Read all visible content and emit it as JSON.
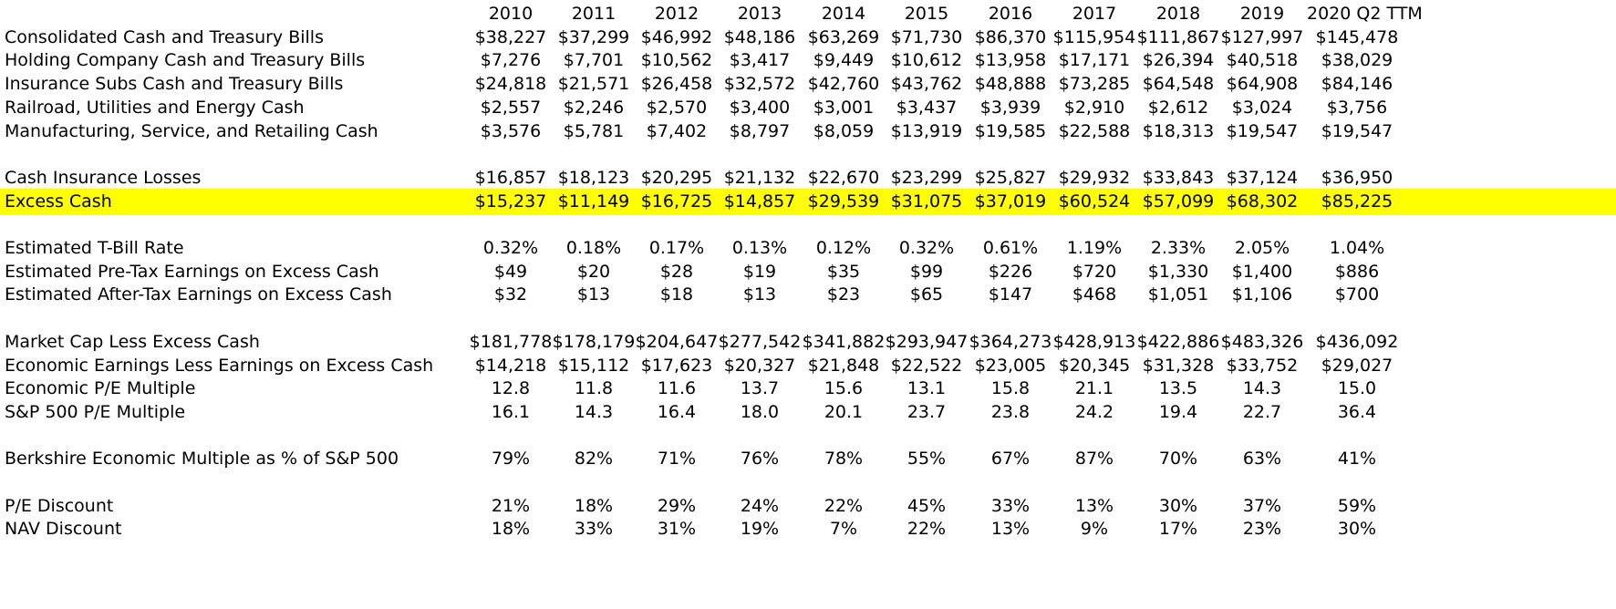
{
  "table": {
    "headers": [
      "2010",
      "2011",
      "2012",
      "2013",
      "2014",
      "2015",
      "2016",
      "2017",
      "2018",
      "2019",
      "2020 Q2 TTM"
    ],
    "rows": [
      {
        "label": "",
        "values": [
          "2010",
          "2011",
          "2012",
          "2013",
          "2014",
          "2015",
          "2016",
          "2017",
          "2018",
          "2019",
          "2020 Q2 TTM"
        ],
        "header": true
      },
      {
        "label": "Consolidated Cash and Treasury Bills",
        "values": [
          "$38,227",
          "$37,299",
          "$46,992",
          "$48,186",
          "$63,269",
          "$71,730",
          "$86,370",
          "$115,954",
          "$111,867",
          "$127,997",
          "$145,478"
        ]
      },
      {
        "label": "Holding Company Cash and Treasury Bills",
        "values": [
          "$7,276",
          "$7,701",
          "$10,562",
          "$3,417",
          "$9,449",
          "$10,612",
          "$13,958",
          "$17,171",
          "$26,394",
          "$40,518",
          "$38,029"
        ]
      },
      {
        "label": "Insurance Subs Cash and Treasury Bills",
        "values": [
          "$24,818",
          "$21,571",
          "$26,458",
          "$32,572",
          "$42,760",
          "$43,762",
          "$48,888",
          "$73,285",
          "$64,548",
          "$64,908",
          "$84,146"
        ]
      },
      {
        "label": "Railroad, Utilities and Energy Cash",
        "values": [
          "$2,557",
          "$2,246",
          "$2,570",
          "$3,400",
          "$3,001",
          "$3,437",
          "$3,939",
          "$2,910",
          "$2,612",
          "$3,024",
          "$3,756"
        ]
      },
      {
        "label": "Manufacturing, Service, and Retailing Cash",
        "values": [
          "$3,576",
          "$5,781",
          "$7,402",
          "$8,797",
          "$8,059",
          "$13,919",
          "$19,585",
          "$22,588",
          "$18,313",
          "$19,547",
          "$19,547"
        ]
      },
      {
        "label": "",
        "values": [],
        "blank": true
      },
      {
        "label": "Cash Insurance Losses",
        "values": [
          "$16,857",
          "$18,123",
          "$20,295",
          "$21,132",
          "$22,670",
          "$23,299",
          "$25,827",
          "$29,932",
          "$33,843",
          "$37,124",
          "$36,950"
        ]
      },
      {
        "label": "Excess Cash",
        "values": [
          "$15,237",
          "$11,149",
          "$16,725",
          "$14,857",
          "$29,539",
          "$31,075",
          "$37,019",
          "$60,524",
          "$57,099",
          "$68,302",
          "$85,225"
        ],
        "highlight": true
      },
      {
        "label": "",
        "values": [],
        "blank": true
      },
      {
        "label": "Estimated T-Bill Rate",
        "values": [
          "0.32%",
          "0.18%",
          "0.17%",
          "0.13%",
          "0.12%",
          "0.32%",
          "0.61%",
          "1.19%",
          "2.33%",
          "2.05%",
          "1.04%"
        ]
      },
      {
        "label": "Estimated Pre-Tax Earnings on Excess Cash",
        "values": [
          "$49",
          "$20",
          "$28",
          "$19",
          "$35",
          "$99",
          "$226",
          "$720",
          "$1,330",
          "$1,400",
          "$886"
        ]
      },
      {
        "label": "Estimated After-Tax Earnings on Excess Cash",
        "values": [
          "$32",
          "$13",
          "$18",
          "$13",
          "$23",
          "$65",
          "$147",
          "$468",
          "$1,051",
          "$1,106",
          "$700"
        ]
      },
      {
        "label": "",
        "values": [],
        "blank": true
      },
      {
        "label": "Market Cap Less Excess Cash",
        "values": [
          "$181,778",
          "$178,179",
          "$204,647",
          "$277,542",
          "$341,882",
          "$293,947",
          "$364,273",
          "$428,913",
          "$422,886",
          "$483,326",
          "$436,092"
        ]
      },
      {
        "label": "Economic Earnings Less Earnings on Excess Cash",
        "values": [
          "$14,218",
          "$15,112",
          "$17,623",
          "$20,327",
          "$21,848",
          "$22,522",
          "$23,005",
          "$20,345",
          "$31,328",
          "$33,752",
          "$29,027"
        ]
      },
      {
        "label": "Economic P/E Multiple",
        "values": [
          "12.8",
          "11.8",
          "11.6",
          "13.7",
          "15.6",
          "13.1",
          "15.8",
          "21.1",
          "13.5",
          "14.3",
          "15.0"
        ]
      },
      {
        "label": "S&P 500 P/E Multiple",
        "values": [
          "16.1",
          "14.3",
          "16.4",
          "18.0",
          "20.1",
          "23.7",
          "23.8",
          "24.2",
          "19.4",
          "22.7",
          "36.4"
        ]
      },
      {
        "label": "",
        "values": [],
        "blank": true
      },
      {
        "label": "Berkshire Economic Multiple as % of S&P 500",
        "values": [
          "79%",
          "82%",
          "71%",
          "76%",
          "78%",
          "55%",
          "67%",
          "87%",
          "70%",
          "63%",
          "41%"
        ]
      },
      {
        "label": "",
        "values": [],
        "blank": true
      },
      {
        "label": "P/E Discount",
        "values": [
          "21%",
          "18%",
          "29%",
          "24%",
          "22%",
          "45%",
          "33%",
          "13%",
          "30%",
          "37%",
          "59%"
        ]
      },
      {
        "label": "NAV Discount",
        "values": [
          "18%",
          "33%",
          "31%",
          "19%",
          "7%",
          "22%",
          "13%",
          "9%",
          "17%",
          "23%",
          "30%"
        ]
      }
    ],
    "highlight_color": "#ffff00"
  }
}
